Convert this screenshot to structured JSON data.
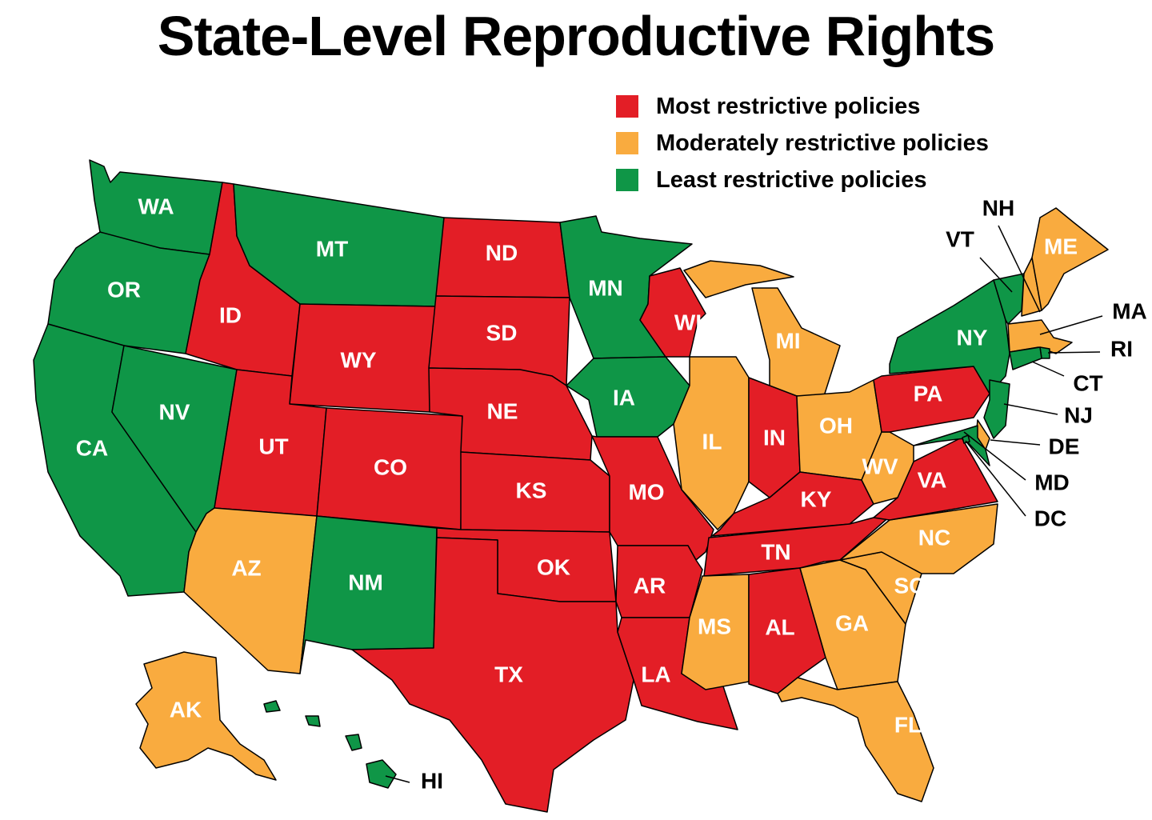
{
  "title": "State-Level Reproductive Rights",
  "colors": {
    "most": "#E31E26",
    "moderate": "#F9AB3F",
    "least": "#0F9647"
  },
  "legend": [
    {
      "key": "most",
      "label": "Most restrictive policies"
    },
    {
      "key": "moderate",
      "label": "Moderately restrictive policies"
    },
    {
      "key": "least",
      "label": "Least restrictive policies"
    }
  ],
  "states": [
    {
      "code": "WA",
      "category": "least"
    },
    {
      "code": "OR",
      "category": "least"
    },
    {
      "code": "CA",
      "category": "least"
    },
    {
      "code": "NV",
      "category": "least"
    },
    {
      "code": "ID",
      "category": "most"
    },
    {
      "code": "MT",
      "category": "least"
    },
    {
      "code": "WY",
      "category": "most"
    },
    {
      "code": "UT",
      "category": "most"
    },
    {
      "code": "CO",
      "category": "most"
    },
    {
      "code": "AZ",
      "category": "moderate"
    },
    {
      "code": "NM",
      "category": "least"
    },
    {
      "code": "ND",
      "category": "most"
    },
    {
      "code": "SD",
      "category": "most"
    },
    {
      "code": "NE",
      "category": "most"
    },
    {
      "code": "KS",
      "category": "most"
    },
    {
      "code": "OK",
      "category": "most"
    },
    {
      "code": "TX",
      "category": "most"
    },
    {
      "code": "MN",
      "category": "least"
    },
    {
      "code": "IA",
      "category": "least"
    },
    {
      "code": "MO",
      "category": "most"
    },
    {
      "code": "AR",
      "category": "most"
    },
    {
      "code": "LA",
      "category": "most"
    },
    {
      "code": "WI",
      "category": "most"
    },
    {
      "code": "IL",
      "category": "moderate"
    },
    {
      "code": "MI",
      "category": "moderate"
    },
    {
      "code": "IN",
      "category": "most"
    },
    {
      "code": "OH",
      "category": "moderate"
    },
    {
      "code": "KY",
      "category": "most"
    },
    {
      "code": "TN",
      "category": "most"
    },
    {
      "code": "MS",
      "category": "moderate"
    },
    {
      "code": "AL",
      "category": "most"
    },
    {
      "code": "GA",
      "category": "moderate"
    },
    {
      "code": "FL",
      "category": "moderate"
    },
    {
      "code": "SC",
      "category": "moderate"
    },
    {
      "code": "NC",
      "category": "moderate"
    },
    {
      "code": "VA",
      "category": "most"
    },
    {
      "code": "WV",
      "category": "moderate"
    },
    {
      "code": "PA",
      "category": "most"
    },
    {
      "code": "NY",
      "category": "least"
    },
    {
      "code": "VT",
      "category": "least"
    },
    {
      "code": "NH",
      "category": "moderate"
    },
    {
      "code": "ME",
      "category": "moderate"
    },
    {
      "code": "MA",
      "category": "moderate"
    },
    {
      "code": "RI",
      "category": "least"
    },
    {
      "code": "CT",
      "category": "least"
    },
    {
      "code": "NJ",
      "category": "least"
    },
    {
      "code": "DE",
      "category": "moderate"
    },
    {
      "code": "MD",
      "category": "least"
    },
    {
      "code": "DC",
      "category": "least"
    },
    {
      "code": "AK",
      "category": "moderate"
    },
    {
      "code": "HI",
      "category": "least"
    }
  ]
}
